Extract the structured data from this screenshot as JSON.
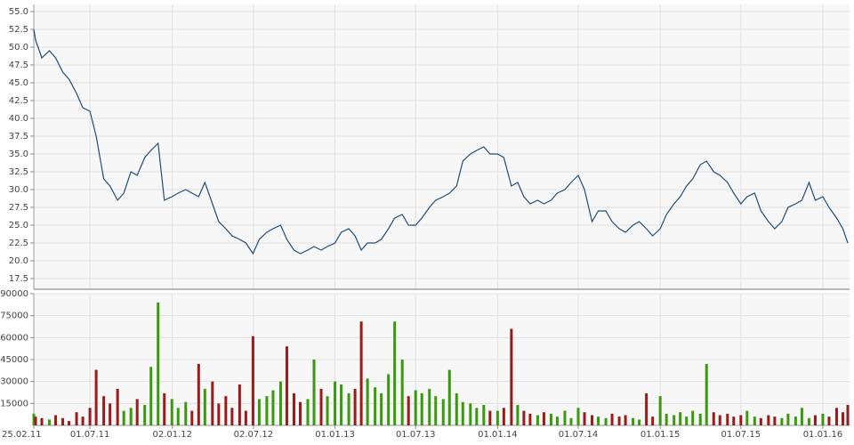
{
  "chart_data": {
    "type": "stock",
    "x": [
      "2011-02-25",
      "2011-03-01",
      "2011-03-15",
      "2011-04-01",
      "2011-04-15",
      "2011-05-01",
      "2011-05-15",
      "2011-06-01",
      "2011-06-15",
      "2011-07-01",
      "2011-07-15",
      "2011-08-01",
      "2011-08-15",
      "2011-09-01",
      "2011-09-15",
      "2011-10-01",
      "2011-10-15",
      "2011-11-01",
      "2011-11-15",
      "2011-12-01",
      "2011-12-15",
      "2012-01-01",
      "2012-01-15",
      "2012-02-01",
      "2012-02-15",
      "2012-03-01",
      "2012-03-15",
      "2012-04-01",
      "2012-04-15",
      "2012-05-01",
      "2012-05-15",
      "2012-06-01",
      "2012-06-15",
      "2012-07-01",
      "2012-07-15",
      "2012-08-01",
      "2012-08-15",
      "2012-09-01",
      "2012-09-15",
      "2012-10-01",
      "2012-10-15",
      "2012-11-01",
      "2012-11-15",
      "2012-12-01",
      "2012-12-15",
      "2013-01-01",
      "2013-01-15",
      "2013-02-01",
      "2013-02-15",
      "2013-03-01",
      "2013-03-15",
      "2013-04-01",
      "2013-04-15",
      "2013-05-01",
      "2013-05-15",
      "2013-06-01",
      "2013-06-15",
      "2013-07-01",
      "2013-07-15",
      "2013-08-01",
      "2013-08-15",
      "2013-09-01",
      "2013-09-15",
      "2013-10-01",
      "2013-10-15",
      "2013-11-01",
      "2013-11-15",
      "2013-12-01",
      "2013-12-15",
      "2014-01-01",
      "2014-01-15",
      "2014-02-01",
      "2014-02-15",
      "2014-03-01",
      "2014-03-15",
      "2014-04-01",
      "2014-04-15",
      "2014-05-01",
      "2014-05-15",
      "2014-06-01",
      "2014-06-15",
      "2014-07-01",
      "2014-07-15",
      "2014-08-01",
      "2014-08-15",
      "2014-09-01",
      "2014-09-15",
      "2014-10-01",
      "2014-10-15",
      "2014-11-01",
      "2014-11-15",
      "2014-12-01",
      "2014-12-15",
      "2015-01-01",
      "2015-01-15",
      "2015-02-01",
      "2015-02-15",
      "2015-03-01",
      "2015-03-15",
      "2015-04-01",
      "2015-04-15",
      "2015-05-01",
      "2015-05-15",
      "2015-06-01",
      "2015-06-15",
      "2015-07-01",
      "2015-07-15",
      "2015-08-01",
      "2015-08-15",
      "2015-09-01",
      "2015-09-15",
      "2015-10-01",
      "2015-10-15",
      "2015-11-01",
      "2015-11-15",
      "2015-12-01",
      "2015-12-15",
      "2016-01-01",
      "2016-01-15",
      "2016-02-01",
      "2016-02-15",
      "2016-02-26"
    ],
    "xlim": [
      "2011-02-25",
      "2016-02-26"
    ],
    "xticks": [
      {
        "value": "2011-02-25",
        "label": "25.02.11"
      },
      {
        "value": "2011-07-01",
        "label": "01.07.11"
      },
      {
        "value": "2012-01-02",
        "label": "02.01.12"
      },
      {
        "value": "2012-07-02",
        "label": "02.07.12"
      },
      {
        "value": "2013-01-01",
        "label": "01.01.13"
      },
      {
        "value": "2013-07-01",
        "label": "01.07.13"
      },
      {
        "value": "2014-01-01",
        "label": "01.01.14"
      },
      {
        "value": "2014-07-01",
        "label": "01.07.14"
      },
      {
        "value": "2015-01-01",
        "label": "01.01.15"
      },
      {
        "value": "2015-07-01",
        "label": "01.07.15"
      },
      {
        "value": "2016-01-01",
        "label": "01.01.16"
      }
    ],
    "grid": true,
    "price": {
      "color": "#1f4e79",
      "ylim": [
        16,
        56
      ],
      "yticks": [
        17.5,
        {
          "value": 20,
          "label": "20.0"
        },
        22.5,
        {
          "value": 25,
          "label": "25.0"
        },
        27.5,
        {
          "value": 30,
          "label": "30.0"
        },
        32.5,
        {
          "value": 35,
          "label": "35.0"
        },
        37.5,
        {
          "value": 40,
          "label": "40.0"
        },
        42.5,
        {
          "value": 45,
          "label": "45.0"
        },
        47.5,
        {
          "value": 50,
          "label": "50.0"
        },
        52.5,
        {
          "value": 55,
          "label": "55.0"
        }
      ],
      "values": [
        52.5,
        51,
        48.5,
        49.5,
        48.5,
        46.5,
        45.5,
        43.5,
        41.5,
        41,
        37.5,
        31.5,
        30.5,
        28.5,
        29.5,
        32.5,
        32,
        34.5,
        35.5,
        36.5,
        28.5,
        29,
        29.5,
        30,
        29.5,
        29,
        31,
        28,
        25.5,
        24.5,
        23.5,
        23,
        22.5,
        21,
        23,
        24,
        24.5,
        25,
        23,
        21.5,
        21,
        21.5,
        22,
        21.5,
        22,
        22.5,
        24,
        24.5,
        23.5,
        21.5,
        22.5,
        22.5,
        23,
        24.5,
        26,
        26.5,
        25,
        25,
        26,
        27.5,
        28.5,
        29,
        29.5,
        30.5,
        34,
        35,
        35.5,
        36,
        35,
        35,
        34.5,
        30.5,
        31,
        29,
        28,
        28.5,
        28,
        28.5,
        29.5,
        30,
        31,
        32,
        30,
        25.5,
        27,
        27,
        25.5,
        24.5,
        24,
        25,
        25.5,
        24.5,
        23.5,
        24.5,
        26.5,
        28,
        29,
        30.5,
        31.5,
        33.5,
        34,
        32.5,
        32,
        31,
        29.5,
        28,
        29,
        29.5,
        27,
        25.5,
        24.5,
        25.5,
        27.5,
        28,
        28.5,
        31,
        28.5,
        29,
        27.5,
        26,
        24.5,
        22.5
      ]
    },
    "volume": {
      "up_color": "#3a9a0e",
      "down_color": "#9b1b1b",
      "ylim": [
        0,
        90000
      ],
      "yticks": [
        15000,
        30000,
        45000,
        60000,
        75000,
        90000
      ],
      "values": [
        8000,
        6000,
        5000,
        4000,
        7000,
        5000,
        3000,
        9000,
        6000,
        12000,
        38000,
        20000,
        15000,
        25000,
        10000,
        12000,
        18000,
        14000,
        40000,
        84000,
        22000,
        18000,
        12000,
        16000,
        10000,
        42000,
        25000,
        30000,
        15000,
        20000,
        12000,
        28000,
        10000,
        61000,
        18000,
        20000,
        24000,
        30000,
        54000,
        22000,
        16000,
        18000,
        45000,
        25000,
        20000,
        30000,
        28000,
        22000,
        25000,
        71000,
        32000,
        26000,
        22000,
        35000,
        71000,
        45000,
        20000,
        24000,
        22000,
        25000,
        20000,
        18000,
        38000,
        22000,
        16000,
        15000,
        12000,
        14000,
        10000,
        10000,
        12000,
        66000,
        14000,
        10000,
        8000,
        7000,
        9000,
        8000,
        6000,
        10000,
        5000,
        12000,
        9000,
        7000,
        6000,
        5000,
        8000,
        6000,
        7000,
        5000,
        4000,
        22000,
        6000,
        20000,
        8000,
        7000,
        9000,
        6000,
        10000,
        8000,
        42000,
        9000,
        7000,
        8000,
        6000,
        7000,
        10000,
        6000,
        5000,
        7000,
        6000,
        5000,
        8000,
        6000,
        12000,
        5000,
        7000,
        8000,
        6000,
        12000,
        9000,
        14000
      ]
    }
  }
}
